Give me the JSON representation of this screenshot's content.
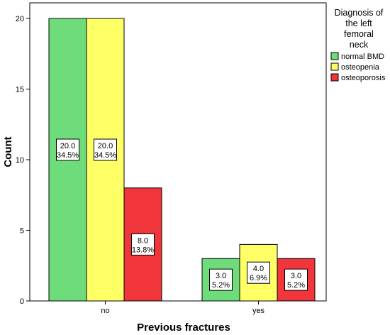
{
  "chart_data": {
    "type": "bar",
    "xlabel": "Previous fractures",
    "ylabel": "Count",
    "categories": [
      "no",
      "yes"
    ],
    "ylim": [
      0,
      20
    ],
    "yticks": [
      "0",
      "5",
      "10",
      "15",
      "20"
    ],
    "legend": {
      "title_lines": [
        "Diagnosis of",
        "the left",
        "femoral",
        "neck"
      ],
      "placement": "right"
    },
    "series": [
      {
        "name": "normal BMD",
        "color": "#6fdc7c",
        "values": [
          20,
          3
        ],
        "labels": [
          [
            "20.0",
            "34.5%"
          ],
          [
            "3.0",
            "5.2%"
          ]
        ]
      },
      {
        "name": "osteopenia",
        "color": "#ffff66",
        "values": [
          20,
          4
        ],
        "labels": [
          [
            "20.0",
            "34.5%"
          ],
          [
            "4.0",
            "6.9%"
          ]
        ]
      },
      {
        "name": "osteoporosis",
        "color": "#f0363a",
        "values": [
          8,
          3
        ],
        "labels": [
          [
            "8.0",
            "13.8%"
          ],
          [
            "3.0",
            "5.2%"
          ]
        ]
      }
    ],
    "grid": false
  }
}
